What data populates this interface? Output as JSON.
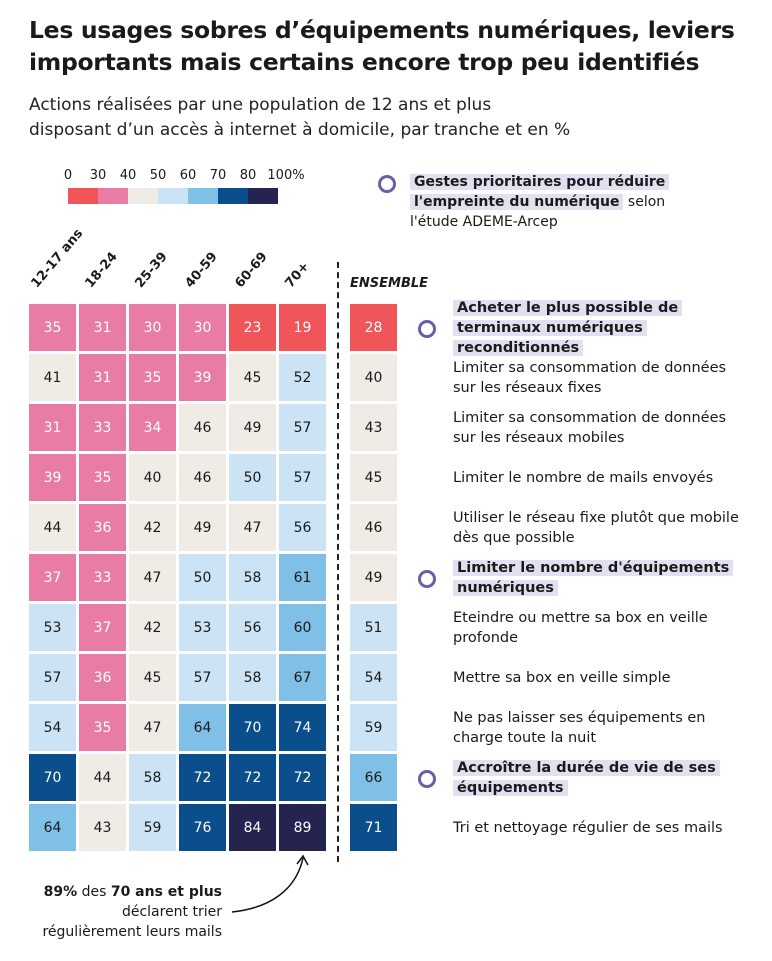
{
  "title": "Les usages sobres d’équipements numériques, leviers importants mais certains encore trop peu identifiés",
  "subtitle_line1": "Actions réalisées par une population de 12 ans et plus",
  "subtitle_line2": "disposant d’un accès à internet à domicile, par tranche et en %",
  "legend": {
    "highlight_part1": "Gestes prioritaires pour réduire",
    "highlight_part2": "l'empreinte du numérique",
    "rest": " selon l'étude ADEME-Arcep"
  },
  "annotation": {
    "bold1": "89%",
    "t1": " des ",
    "bold2": "70 ans et plus",
    "t2": " déclarent trier régulièrement leurs mails"
  },
  "chart_data": {
    "type": "heatmap",
    "title": "Les usages sobres d’équipements numériques, leviers importants mais certains encore trop peu identifiés",
    "unit": "%",
    "color_scale": {
      "ticks": [
        "0",
        "30",
        "40",
        "50",
        "60",
        "70",
        "80",
        "100%"
      ],
      "bins": [
        [
          0,
          30
        ],
        [
          30,
          40
        ],
        [
          40,
          50
        ],
        [
          50,
          60
        ],
        [
          60,
          70
        ],
        [
          70,
          80
        ],
        [
          80,
          100
        ]
      ],
      "colors": [
        "#f05559",
        "#e97ca4",
        "#f0ebe5",
        "#cce3f5",
        "#80bfe6",
        "#0a4e8c",
        "#25234f"
      ]
    },
    "columns": [
      "12-17 ans",
      "18-24",
      "25-39",
      "40-59",
      "60-69",
      "70+"
    ],
    "total_label": "ENSEMBLE",
    "rows": [
      {
        "label": "Acheter le plus possible de terminaux numériques reconditionnés",
        "priority": true,
        "values": [
          35,
          31,
          30,
          30,
          23,
          19
        ],
        "total": 28
      },
      {
        "label": "Limiter sa consommation de données sur les réseaux fixes",
        "priority": false,
        "values": [
          41,
          31,
          35,
          39,
          45,
          52
        ],
        "total": 40
      },
      {
        "label": "Limiter sa consommation de données sur les réseaux mobiles",
        "priority": false,
        "values": [
          31,
          33,
          34,
          46,
          49,
          57
        ],
        "total": 43
      },
      {
        "label": "Limiter le nombre de mails envoyés",
        "priority": false,
        "values": [
          39,
          35,
          40,
          46,
          50,
          57
        ],
        "total": 45
      },
      {
        "label": "Utiliser le réseau fixe plutôt que mobile dès que possible",
        "priority": false,
        "values": [
          44,
          36,
          42,
          49,
          47,
          56
        ],
        "total": 46
      },
      {
        "label": "Limiter le nombre d'équipements numériques",
        "priority": true,
        "values": [
          37,
          33,
          47,
          50,
          58,
          61
        ],
        "total": 49
      },
      {
        "label": "Eteindre ou mettre sa box en veille profonde",
        "priority": false,
        "values": [
          53,
          37,
          42,
          53,
          56,
          60
        ],
        "total": 51
      },
      {
        "label": "Mettre sa box en veille simple",
        "priority": false,
        "values": [
          57,
          36,
          45,
          57,
          58,
          67
        ],
        "total": 54
      },
      {
        "label": "Ne pas laisser ses équipements en charge toute la nuit",
        "priority": false,
        "values": [
          54,
          35,
          47,
          64,
          70,
          74
        ],
        "total": 59
      },
      {
        "label": "Accroître la durée de vie de ses équipements",
        "priority": true,
        "values": [
          70,
          44,
          58,
          72,
          72,
          72
        ],
        "total": 66
      },
      {
        "label": "Tri et nettoyage régulier de ses mails",
        "priority": false,
        "values": [
          64,
          43,
          59,
          76,
          84,
          89
        ],
        "total": 71
      }
    ]
  }
}
